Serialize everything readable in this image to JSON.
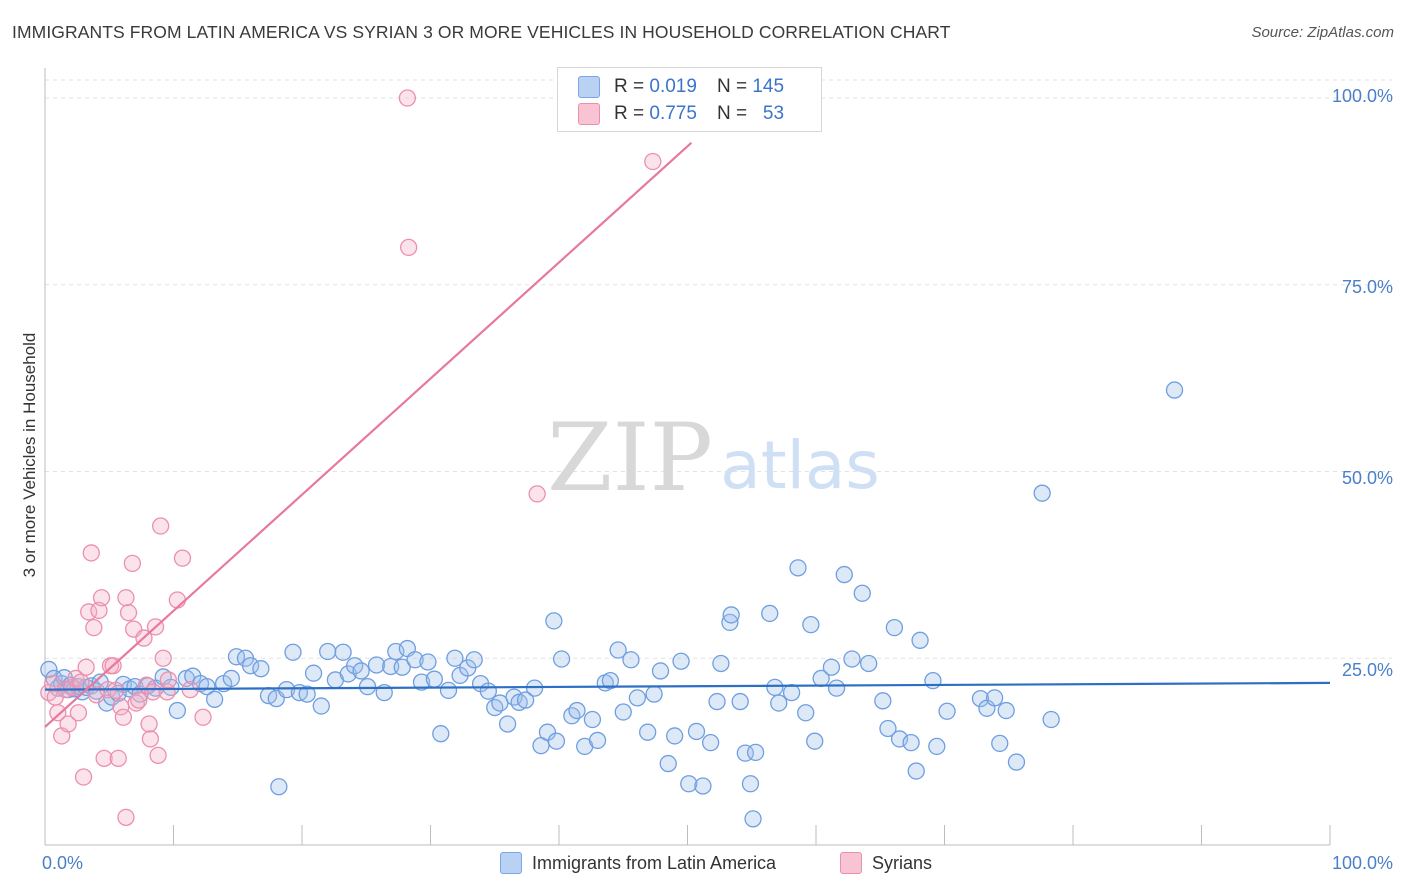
{
  "title": "IMMIGRANTS FROM LATIN AMERICA VS SYRIAN 3 OR MORE VEHICLES IN HOUSEHOLD CORRELATION CHART",
  "source": "Source: ZipAtlas.com",
  "watermark": {
    "zip": "ZIP",
    "atlas": "atlas"
  },
  "legend_top": {
    "rows": [
      {
        "r_label": "R =",
        "r_value": "0.019",
        "n_label": "N =",
        "n_value": "145",
        "color": "#b9d1f3"
      },
      {
        "r_label": "R =",
        "r_value": "0.775",
        "n_label": "N =",
        "n_value": "53",
        "color": "#f8c3d3"
      }
    ]
  },
  "chart_data": {
    "type": "scatter",
    "title": "IMMIGRANTS FROM LATIN AMERICA VS SYRIAN 3 OR MORE VEHICLES IN HOUSEHOLD CORRELATION CHART",
    "xlabel": "",
    "ylabel": "3 or more Vehicles in Household",
    "xlim": [
      0,
      100
    ],
    "ylim": [
      0,
      100
    ],
    "x_tick_labels": [
      "0.0%",
      "100.0%"
    ],
    "y_tick_labels": [
      "100.0%",
      "75.0%",
      "50.0%",
      "25.0%"
    ],
    "y_ticks": [
      100,
      75,
      50,
      25
    ],
    "legend": [
      "Immigrants from Latin America",
      "Syrians"
    ],
    "series": [
      {
        "name": "Immigrants from Latin America",
        "color": "#6f9fe0",
        "trend": {
          "x0": 0,
          "y0": 20.8,
          "x1": 100,
          "y1": 21.7,
          "color": "#2c6fc4"
        },
        "points": [
          [
            0.3,
            23.5
          ],
          [
            0.7,
            22.3
          ],
          [
            1.0,
            21.0
          ],
          [
            1.3,
            21.6
          ],
          [
            1.5,
            22.4
          ],
          [
            1.8,
            20.8
          ],
          [
            2.0,
            21.4
          ],
          [
            2.3,
            20.9
          ],
          [
            2.6,
            21.2
          ],
          [
            2.9,
            20.5
          ],
          [
            3.2,
            21.1
          ],
          [
            3.6,
            21.3
          ],
          [
            4.0,
            20.6
          ],
          [
            4.3,
            21.8
          ],
          [
            4.8,
            19.0
          ],
          [
            5.2,
            19.8
          ],
          [
            5.7,
            20.3
          ],
          [
            6.1,
            21.5
          ],
          [
            6.6,
            20.9
          ],
          [
            7.0,
            21.2
          ],
          [
            7.4,
            20.2
          ],
          [
            8.0,
            21.3
          ],
          [
            8.6,
            21.0
          ],
          [
            9.2,
            22.5
          ],
          [
            9.8,
            21.1
          ],
          [
            10.3,
            18.0
          ],
          [
            11.0,
            22.3
          ],
          [
            11.5,
            22.6
          ],
          [
            12.1,
            21.6
          ],
          [
            12.6,
            21.2
          ],
          [
            13.2,
            19.5
          ],
          [
            13.9,
            21.6
          ],
          [
            14.5,
            22.3
          ],
          [
            14.9,
            25.2
          ],
          [
            15.6,
            25.0
          ],
          [
            16.0,
            24.0
          ],
          [
            16.8,
            23.6
          ],
          [
            17.4,
            20.0
          ],
          [
            18.0,
            19.6
          ],
          [
            18.2,
            7.8
          ],
          [
            18.8,
            20.8
          ],
          [
            19.3,
            25.8
          ],
          [
            19.8,
            20.4
          ],
          [
            20.4,
            20.2
          ],
          [
            20.9,
            23.0
          ],
          [
            21.5,
            18.6
          ],
          [
            22.0,
            25.9
          ],
          [
            22.6,
            22.1
          ],
          [
            23.2,
            25.8
          ],
          [
            23.6,
            22.9
          ],
          [
            24.1,
            24.0
          ],
          [
            24.6,
            23.3
          ],
          [
            25.1,
            21.2
          ],
          [
            25.8,
            24.1
          ],
          [
            26.4,
            20.4
          ],
          [
            26.9,
            23.9
          ],
          [
            27.3,
            25.9
          ],
          [
            27.8,
            23.8
          ],
          [
            28.2,
            26.3
          ],
          [
            28.8,
            24.8
          ],
          [
            29.3,
            21.8
          ],
          [
            29.8,
            24.5
          ],
          [
            30.3,
            22.2
          ],
          [
            30.8,
            14.9
          ],
          [
            31.4,
            20.7
          ],
          [
            31.9,
            25.0
          ],
          [
            32.3,
            22.7
          ],
          [
            32.9,
            23.7
          ],
          [
            33.4,
            24.8
          ],
          [
            33.9,
            21.6
          ],
          [
            34.5,
            20.6
          ],
          [
            35.0,
            18.4
          ],
          [
            35.4,
            19.0
          ],
          [
            36.0,
            16.2
          ],
          [
            36.5,
            19.8
          ],
          [
            36.9,
            19.1
          ],
          [
            37.4,
            19.4
          ],
          [
            38.1,
            21.0
          ],
          [
            38.6,
            13.3
          ],
          [
            39.1,
            15.1
          ],
          [
            39.6,
            30.0
          ],
          [
            39.8,
            13.9
          ],
          [
            40.2,
            24.9
          ],
          [
            41.0,
            17.3
          ],
          [
            41.4,
            18.0
          ],
          [
            42.0,
            13.2
          ],
          [
            42.6,
            16.8
          ],
          [
            43.0,
            14.0
          ],
          [
            43.6,
            21.7
          ],
          [
            44.0,
            22.0
          ],
          [
            44.6,
            26.1
          ],
          [
            45.0,
            17.8
          ],
          [
            45.6,
            24.8
          ],
          [
            46.1,
            19.7
          ],
          [
            46.9,
            15.1
          ],
          [
            47.4,
            20.2
          ],
          [
            47.9,
            23.3
          ],
          [
            48.5,
            10.9
          ],
          [
            49.0,
            14.6
          ],
          [
            49.5,
            24.6
          ],
          [
            50.1,
            8.2
          ],
          [
            50.7,
            15.2
          ],
          [
            51.2,
            7.9
          ],
          [
            51.8,
            13.7
          ],
          [
            52.3,
            19.2
          ],
          [
            52.6,
            24.3
          ],
          [
            53.3,
            29.8
          ],
          [
            53.4,
            30.8
          ],
          [
            54.1,
            19.2
          ],
          [
            54.5,
            12.3
          ],
          [
            54.9,
            8.2
          ],
          [
            55.1,
            3.5
          ],
          [
            55.3,
            12.4
          ],
          [
            56.4,
            31.0
          ],
          [
            56.8,
            21.1
          ],
          [
            57.1,
            19.0
          ],
          [
            58.1,
            20.4
          ],
          [
            58.6,
            37.1
          ],
          [
            59.2,
            17.7
          ],
          [
            59.6,
            29.5
          ],
          [
            59.9,
            13.9
          ],
          [
            60.4,
            22.3
          ],
          [
            61.2,
            23.8
          ],
          [
            61.6,
            21.0
          ],
          [
            62.2,
            36.2
          ],
          [
            62.8,
            24.9
          ],
          [
            63.6,
            33.7
          ],
          [
            64.1,
            24.3
          ],
          [
            65.2,
            19.3
          ],
          [
            65.6,
            15.6
          ],
          [
            66.1,
            29.1
          ],
          [
            66.5,
            14.2
          ],
          [
            67.4,
            13.7
          ],
          [
            67.8,
            9.9
          ],
          [
            68.1,
            27.4
          ],
          [
            69.1,
            22.0
          ],
          [
            69.4,
            13.2
          ],
          [
            70.2,
            17.9
          ],
          [
            72.8,
            19.6
          ],
          [
            73.3,
            18.3
          ],
          [
            73.9,
            19.7
          ],
          [
            74.3,
            13.6
          ],
          [
            74.8,
            18.0
          ],
          [
            75.6,
            11.1
          ],
          [
            77.6,
            47.1
          ],
          [
            78.3,
            16.8
          ],
          [
            87.9,
            60.9
          ]
        ]
      },
      {
        "name": "Syrians",
        "color": "#ec8fae",
        "trend": {
          "x0": 0,
          "y0": 15.8,
          "x1": 50.3,
          "y1": 94.0,
          "color": "#e8799e"
        },
        "points": [
          [
            0.3,
            20.4
          ],
          [
            0.6,
            21.6
          ],
          [
            0.8,
            19.8
          ],
          [
            1.0,
            17.7
          ],
          [
            1.3,
            14.6
          ],
          [
            1.6,
            20.8
          ],
          [
            1.8,
            16.2
          ],
          [
            2.1,
            21.1
          ],
          [
            2.4,
            22.3
          ],
          [
            2.6,
            17.7
          ],
          [
            2.8,
            21.8
          ],
          [
            3.0,
            9.1
          ],
          [
            3.2,
            23.8
          ],
          [
            3.4,
            31.2
          ],
          [
            3.6,
            39.1
          ],
          [
            3.8,
            29.1
          ],
          [
            4.0,
            20.1
          ],
          [
            4.2,
            31.4
          ],
          [
            4.4,
            33.1
          ],
          [
            4.6,
            11.6
          ],
          [
            4.9,
            20.8
          ],
          [
            5.1,
            24.0
          ],
          [
            5.3,
            24.0
          ],
          [
            5.5,
            20.7
          ],
          [
            5.7,
            11.6
          ],
          [
            5.9,
            18.5
          ],
          [
            6.1,
            17.1
          ],
          [
            6.3,
            33.1
          ],
          [
            6.5,
            31.1
          ],
          [
            6.8,
            37.7
          ],
          [
            6.9,
            28.9
          ],
          [
            7.1,
            19.0
          ],
          [
            7.3,
            19.4
          ],
          [
            7.7,
            27.7
          ],
          [
            7.9,
            21.4
          ],
          [
            8.1,
            16.2
          ],
          [
            8.4,
            20.5
          ],
          [
            8.6,
            29.2
          ],
          [
            9.0,
            42.7
          ],
          [
            9.5,
            20.5
          ],
          [
            10.3,
            32.8
          ],
          [
            10.7,
            38.4
          ],
          [
            11.3,
            20.8
          ],
          [
            12.3,
            17.1
          ],
          [
            6.3,
            3.7
          ],
          [
            8.8,
            12.0
          ],
          [
            8.2,
            14.2
          ],
          [
            9.2,
            25.0
          ],
          [
            28.2,
            100.0
          ],
          [
            28.3,
            80.0
          ],
          [
            38.3,
            47.0
          ],
          [
            47.3,
            91.5
          ],
          [
            9.6,
            22.1
          ]
        ]
      }
    ]
  }
}
